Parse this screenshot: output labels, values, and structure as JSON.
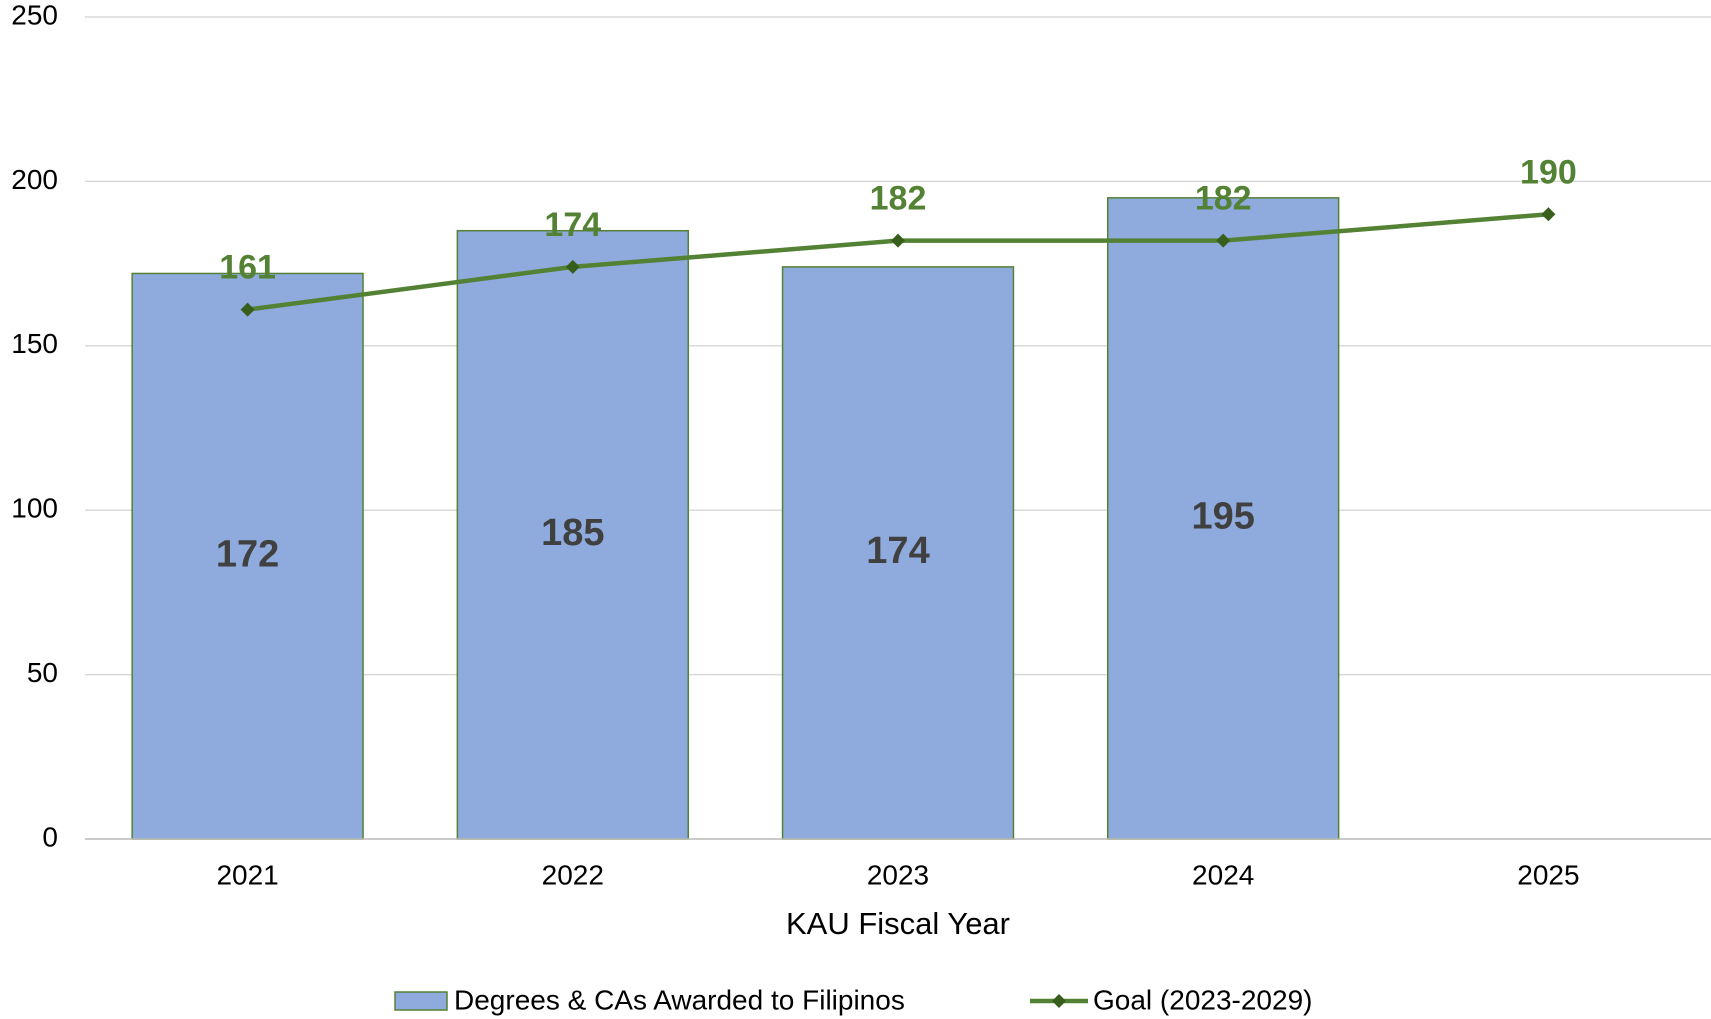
{
  "chart_data": {
    "type": "bar",
    "x_label": "KAU Fiscal Year",
    "categories": [
      "2021",
      "2022",
      "2023",
      "2024",
      "2025"
    ],
    "series": [
      {
        "name": "Degrees & CAs Awarded to Filipinos",
        "type": "bar",
        "color": "#8faadc",
        "edge_color": "#548235",
        "label_color": "#404040",
        "values": [
          172,
          185,
          174,
          195,
          null
        ]
      },
      {
        "name": "Goal (2023-2029)",
        "type": "line",
        "color": "#548235",
        "marker_color": "#375f1b",
        "label_color": "#548235",
        "values": [
          161,
          174,
          182,
          182,
          190
        ]
      }
    ],
    "ylim": [
      0,
      250
    ],
    "yticks": [
      0,
      50,
      100,
      150,
      200,
      250
    ],
    "grid": true,
    "legend": "bottom"
  }
}
